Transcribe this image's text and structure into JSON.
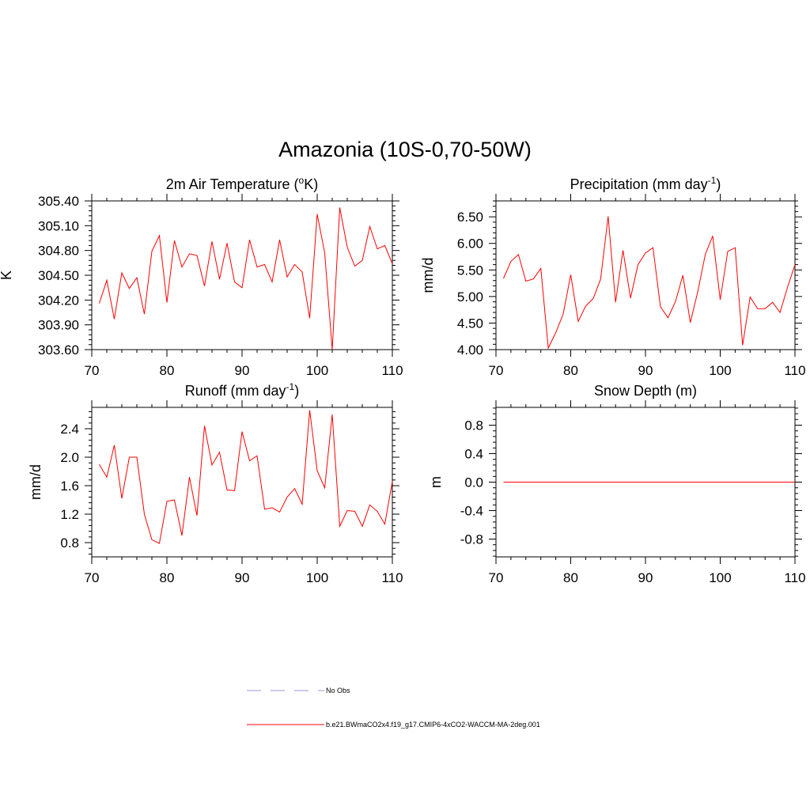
{
  "figure": {
    "title": "Amazonia (10S-0,70-50W)"
  },
  "chart_data": [
    {
      "type": "line",
      "title": "2m Air Temperature (",
      "title_super": "o",
      "title_tail": "K)",
      "xlabel": "",
      "ylabel": "K",
      "xlim": [
        70,
        110
      ],
      "ylim": [
        303.6,
        305.4
      ],
      "xticks": [
        70,
        80,
        90,
        100,
        110
      ],
      "xtick_labels": [
        "70",
        "80",
        "90",
        "100",
        "110"
      ],
      "yticks": [
        303.6,
        303.9,
        304.2,
        304.5,
        304.8,
        305.1,
        305.4
      ],
      "ytick_labels": [
        "303.60",
        "303.90",
        "304.20",
        "304.50",
        "304.80",
        "305.10",
        "305.40"
      ],
      "grid": false,
      "series": [
        {
          "name": "b.e21.BWmaCO2x4.f19_g17.CMIP6-4xCO2-WACCM-MA-2deg.001",
          "color": "#ff0000",
          "x": [
            71,
            72,
            73,
            74,
            75,
            76,
            77,
            78,
            79,
            80,
            81,
            82,
            83,
            84,
            85,
            86,
            87,
            88,
            89,
            90,
            91,
            92,
            93,
            94,
            95,
            96,
            97,
            98,
            99,
            100,
            101,
            102,
            103,
            104,
            105,
            106,
            107,
            108,
            109,
            110
          ],
          "values": [
            304.16,
            304.44,
            303.97,
            304.53,
            304.34,
            304.47,
            304.03,
            304.79,
            304.98,
            304.17,
            304.92,
            304.6,
            304.76,
            304.74,
            304.37,
            304.91,
            304.45,
            304.89,
            304.42,
            304.35,
            304.93,
            304.6,
            304.63,
            304.42,
            304.93,
            304.48,
            304.63,
            304.54,
            303.98,
            305.24,
            304.77,
            303.6,
            305.32,
            304.84,
            304.61,
            304.68,
            305.09,
            304.82,
            304.86,
            304.64
          ]
        }
      ]
    },
    {
      "type": "line",
      "title": "Precipitation (mm day",
      "title_super": "-1",
      "title_tail": ")",
      "xlabel": "",
      "ylabel": "mm/d",
      "xlim": [
        70,
        110
      ],
      "ylim": [
        4.0,
        6.8
      ],
      "xticks": [
        70,
        80,
        90,
        100,
        110
      ],
      "xtick_labels": [
        "70",
        "80",
        "90",
        "100",
        "110"
      ],
      "yticks": [
        4.0,
        4.5,
        5.0,
        5.5,
        6.0,
        6.5
      ],
      "ytick_labels": [
        "4.00",
        "4.50",
        "5.00",
        "5.50",
        "6.00",
        "6.50"
      ],
      "grid": false,
      "series": [
        {
          "name": "b.e21.BWmaCO2x4.f19_g17.CMIP6-4xCO2-WACCM-MA-2deg.001",
          "color": "#ff0000",
          "x": [
            71,
            72,
            73,
            74,
            75,
            76,
            77,
            78,
            79,
            80,
            81,
            82,
            83,
            84,
            85,
            86,
            87,
            88,
            89,
            90,
            91,
            92,
            93,
            94,
            95,
            96,
            97,
            98,
            99,
            100,
            101,
            102,
            103,
            104,
            105,
            106,
            107,
            108,
            109,
            110
          ],
          "values": [
            5.34,
            5.66,
            5.79,
            5.29,
            5.33,
            5.53,
            4.03,
            4.32,
            4.67,
            5.41,
            4.53,
            4.82,
            4.96,
            5.33,
            6.51,
            4.89,
            5.87,
            4.97,
            5.6,
            5.82,
            5.92,
            4.81,
            4.6,
            4.9,
            5.4,
            4.51,
            5.09,
            5.79,
            6.14,
            4.94,
            5.85,
            5.92,
            4.08,
            4.99,
            4.77,
            4.77,
            4.89,
            4.7,
            5.17,
            5.6
          ]
        }
      ]
    },
    {
      "type": "line",
      "title": "Runoff (mm day",
      "title_super": "-1",
      "title_tail": ")",
      "xlabel": "",
      "ylabel": "mm/d",
      "xlim": [
        70,
        110
      ],
      "ylim": [
        0.6,
        2.7
      ],
      "xticks": [
        70,
        80,
        90,
        100,
        110
      ],
      "xtick_labels": [
        "70",
        "80",
        "90",
        "100",
        "110"
      ],
      "yticks": [
        0.8,
        1.2,
        1.6,
        2.0,
        2.4
      ],
      "ytick_labels": [
        "0.8",
        "1.2",
        "1.6",
        "2.0",
        "2.4"
      ],
      "grid": false,
      "series": [
        {
          "name": "b.e21.BWmaCO2x4.f19_g17.CMIP6-4xCO2-WACCM-MA-2deg.001",
          "color": "#ff0000",
          "x": [
            71,
            72,
            73,
            74,
            75,
            76,
            77,
            78,
            79,
            80,
            81,
            82,
            83,
            84,
            85,
            86,
            87,
            88,
            89,
            90,
            91,
            92,
            93,
            94,
            95,
            96,
            97,
            98,
            99,
            100,
            101,
            102,
            103,
            104,
            105,
            106,
            107,
            108,
            109,
            110
          ],
          "values": [
            1.9,
            1.72,
            2.17,
            1.42,
            2.0,
            2.0,
            1.2,
            0.84,
            0.79,
            1.38,
            1.4,
            0.9,
            1.72,
            1.18,
            2.44,
            1.89,
            2.07,
            1.54,
            1.53,
            2.36,
            1.95,
            2.02,
            1.27,
            1.29,
            1.23,
            1.44,
            1.56,
            1.34,
            2.66,
            1.81,
            1.57,
            2.6,
            1.03,
            1.25,
            1.24,
            1.03,
            1.33,
            1.24,
            1.06,
            1.66
          ]
        }
      ]
    },
    {
      "type": "line",
      "title": "Snow Depth (m)",
      "title_super": "",
      "title_tail": "",
      "xlabel": "",
      "ylabel": "m",
      "xlim": [
        70,
        110
      ],
      "ylim": [
        -1.05,
        1.05
      ],
      "xticks": [
        70,
        80,
        90,
        100,
        110
      ],
      "xtick_labels": [
        "70",
        "80",
        "90",
        "100",
        "110"
      ],
      "yticks": [
        -0.8,
        -0.4,
        0.0,
        0.4,
        0.8
      ],
      "ytick_labels": [
        "-0.8",
        "-0.4",
        "0.0",
        "0.4",
        "0.8"
      ],
      "grid": false,
      "series": [
        {
          "name": "b.e21.BWmaCO2x4.f19_g17.CMIP6-4xCO2-WACCM-MA-2deg.001",
          "color": "#ff0000",
          "x": [
            71,
            72,
            73,
            74,
            75,
            76,
            77,
            78,
            79,
            80,
            81,
            82,
            83,
            84,
            85,
            86,
            87,
            88,
            89,
            90,
            91,
            92,
            93,
            94,
            95,
            96,
            97,
            98,
            99,
            100,
            101,
            102,
            103,
            104,
            105,
            106,
            107,
            108,
            109,
            110
          ],
          "values": [
            0,
            0,
            0,
            0,
            0,
            0,
            0,
            0,
            0,
            0,
            0,
            0,
            0,
            0,
            0,
            0,
            0,
            0,
            0,
            0,
            0,
            0,
            0,
            0,
            0,
            0,
            0,
            0,
            0,
            0,
            0,
            0,
            0,
            0,
            0,
            0,
            0,
            0,
            0,
            0
          ]
        }
      ]
    }
  ],
  "legend": {
    "placement": "bottom-center",
    "items": [
      {
        "label": "No Obs",
        "color": "#9999dd",
        "style": "dashed"
      },
      {
        "label": "b.e21.BWmaCO2x4.f19_g17.CMIP6-4xCO2-WACCM-MA-2deg.001",
        "color": "#ff0000",
        "style": "solid"
      }
    ]
  }
}
